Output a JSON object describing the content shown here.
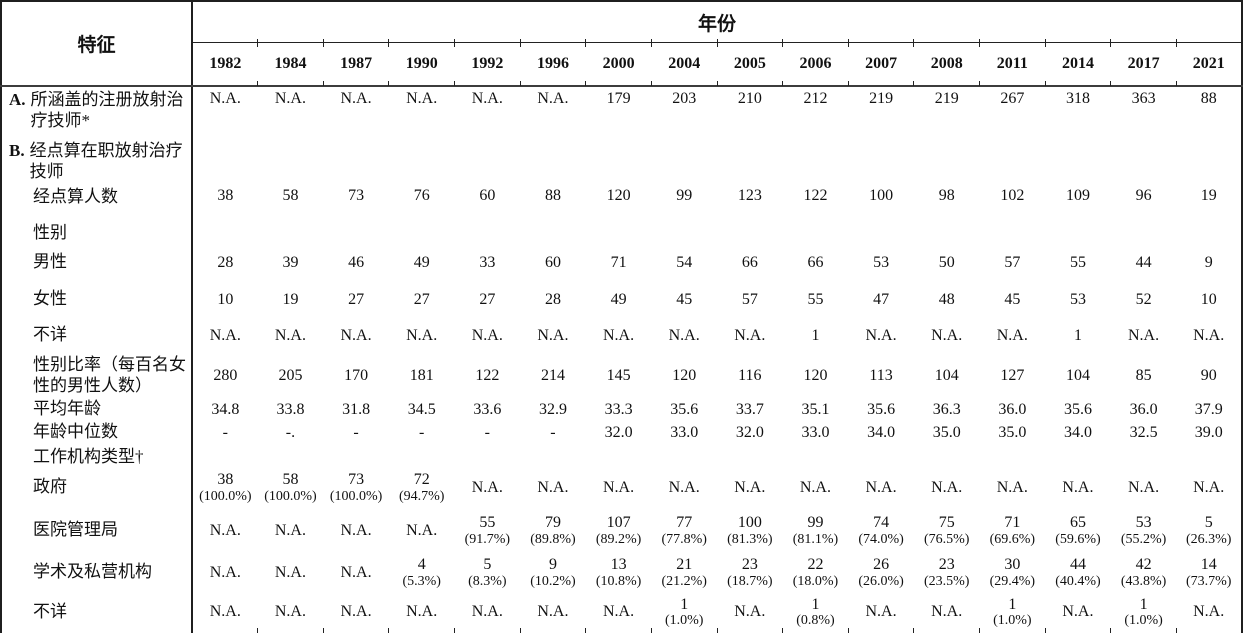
{
  "table": {
    "corner_header": "特征",
    "year_header": "年份",
    "years": [
      "1982",
      "1984",
      "1987",
      "1990",
      "1992",
      "1996",
      "2000",
      "2004",
      "2005",
      "2006",
      "2007",
      "2008",
      "2011",
      "2014",
      "2017",
      "2021"
    ],
    "rows": [
      {
        "id": "registered-radiotherapists",
        "marker": "A.",
        "label": "所涵盖的注册放射治疗技师*",
        "values": [
          "N.A.",
          "N.A.",
          "N.A.",
          "N.A.",
          "N.A.",
          "N.A.",
          "179",
          "203",
          "210",
          "212",
          "219",
          "219",
          "267",
          "318",
          "363",
          "88"
        ]
      },
      {
        "id": "enumerated-radiotherapists",
        "marker": "B.",
        "label": "经点算在职放射治疗技师",
        "values": []
      },
      {
        "id": "persons-enumerated",
        "label": "经点算人数",
        "values": [
          "38",
          "58",
          "73",
          "76",
          "60",
          "88",
          "120",
          "99",
          "123",
          "122",
          "100",
          "98",
          "102",
          "109",
          "96",
          "19"
        ]
      },
      {
        "id": "sex",
        "label": "性别",
        "values": []
      },
      {
        "id": "male",
        "label": "男性",
        "values": [
          "28",
          "39",
          "46",
          "49",
          "33",
          "60",
          "71",
          "54",
          "66",
          "66",
          "53",
          "50",
          "57",
          "55",
          "44",
          "9"
        ]
      },
      {
        "id": "female",
        "label": "女性",
        "values": [
          "10",
          "19",
          "27",
          "27",
          "27",
          "28",
          "49",
          "45",
          "57",
          "55",
          "47",
          "48",
          "45",
          "53",
          "52",
          "10"
        ]
      },
      {
        "id": "sex-unknown",
        "label": "不详",
        "values": [
          "N.A.",
          "N.A.",
          "N.A.",
          "N.A.",
          "N.A.",
          "N.A.",
          "N.A.",
          "N.A.",
          "N.A.",
          "1",
          "N.A.",
          "N.A.",
          "N.A.",
          "1",
          "N.A.",
          "N.A."
        ]
      },
      {
        "id": "sex-ratio",
        "label": "性别比率（每百名女性的男性人数）",
        "values": [
          "280",
          "205",
          "170",
          "181",
          "122",
          "214",
          "145",
          "120",
          "116",
          "120",
          "113",
          "104",
          "127",
          "104",
          "85",
          "90"
        ]
      },
      {
        "id": "mean-age",
        "label": "平均年龄",
        "values": [
          "34.8",
          "33.8",
          "31.8",
          "34.5",
          "33.6",
          "32.9",
          "33.3",
          "35.6",
          "33.7",
          "35.1",
          "35.6",
          "36.3",
          "36.0",
          "35.6",
          "36.0",
          "37.9"
        ]
      },
      {
        "id": "median-age",
        "label": "年龄中位数",
        "values": [
          "-",
          "-.",
          "-",
          "-",
          "-",
          "-",
          "32.0",
          "33.0",
          "32.0",
          "33.0",
          "34.0",
          "35.0",
          "35.0",
          "34.0",
          "32.5",
          "39.0"
        ]
      },
      {
        "id": "institution-type",
        "label": "工作机构类型†",
        "values": []
      },
      {
        "id": "government",
        "label": "政府",
        "values": [
          [
            "38",
            "(100.0%)"
          ],
          [
            "58",
            "(100.0%)"
          ],
          [
            "73",
            "(100.0%)"
          ],
          [
            "72",
            "(94.7%)"
          ],
          "N.A.",
          "N.A.",
          "N.A.",
          "N.A.",
          "N.A.",
          "N.A.",
          "N.A.",
          "N.A.",
          "N.A.",
          "N.A.",
          "N.A.",
          "N.A."
        ]
      },
      {
        "id": "hospital-authority",
        "label": "医院管理局",
        "values": [
          "N.A.",
          "N.A.",
          "N.A.",
          "N.A.",
          [
            "55",
            "(91.7%)"
          ],
          [
            "79",
            "(89.8%)"
          ],
          [
            "107",
            "(89.2%)"
          ],
          [
            "77",
            "(77.8%)"
          ],
          [
            "100",
            "(81.3%)"
          ],
          [
            "99",
            "(81.1%)"
          ],
          [
            "74",
            "(74.0%)"
          ],
          [
            "75",
            "(76.5%)"
          ],
          [
            "71",
            "(69.6%)"
          ],
          [
            "65",
            "(59.6%)"
          ],
          [
            "53",
            "(55.2%)"
          ],
          [
            "5",
            "(26.3%)"
          ]
        ]
      },
      {
        "id": "academic-private",
        "label": "学术及私营机构",
        "values": [
          "N.A.",
          "N.A.",
          "N.A.",
          [
            "4",
            "(5.3%)"
          ],
          [
            "5",
            "(8.3%)"
          ],
          [
            "9",
            "(10.2%)"
          ],
          [
            "13",
            "(10.8%)"
          ],
          [
            "21",
            "(21.2%)"
          ],
          [
            "23",
            "(18.7%)"
          ],
          [
            "22",
            "(18.0%)"
          ],
          [
            "26",
            "(26.0%)"
          ],
          [
            "23",
            "(23.5%)"
          ],
          [
            "30",
            "(29.4%)"
          ],
          [
            "44",
            "(40.4%)"
          ],
          [
            "42",
            "(43.8%)"
          ],
          [
            "14",
            "(73.7%)"
          ]
        ]
      },
      {
        "id": "institution-unknown",
        "label": "不详",
        "values": [
          "N.A.",
          "N.A.",
          "N.A.",
          "N.A.",
          "N.A.",
          "N.A.",
          "N.A.",
          [
            "1",
            "(1.0%)"
          ],
          "N.A.",
          [
            "1",
            "(0.8%)"
          ],
          "N.A.",
          "N.A.",
          [
            "1",
            "(1.0%)"
          ],
          "N.A.",
          [
            "1",
            "(1.0%)"
          ],
          "N.A."
        ]
      }
    ]
  }
}
